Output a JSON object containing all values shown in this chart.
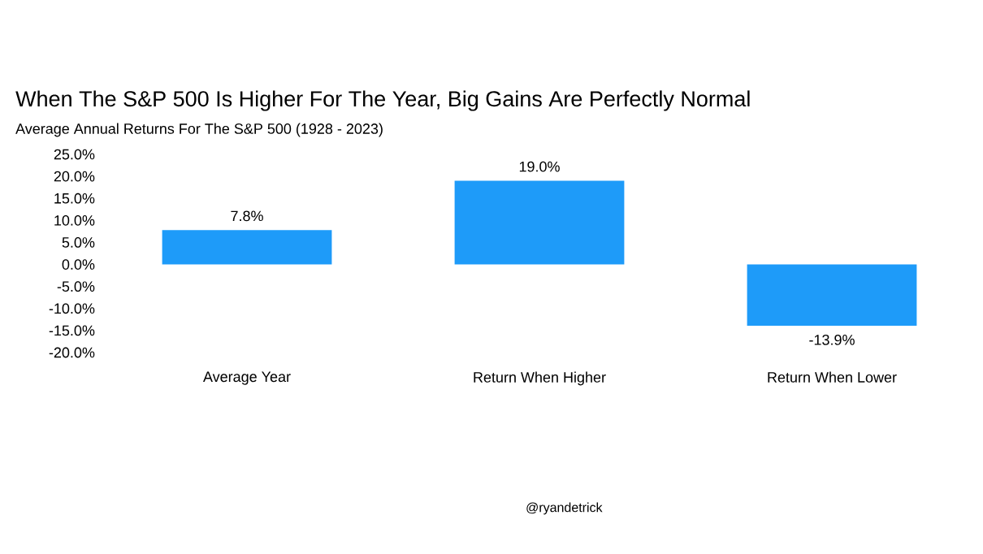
{
  "chart_data": {
    "type": "bar",
    "title": "When The S&P 500 Is Higher For The Year, Big Gains Are Perfectly Normal",
    "subtitle": "Average Annual Returns For The S&P 500 (1928 - 2023)",
    "categories": [
      "Average Year",
      "Return When Higher",
      "Return When Lower"
    ],
    "values": [
      7.8,
      19.0,
      -13.9
    ],
    "value_labels": [
      "7.8%",
      "19.0%",
      "-13.9%"
    ],
    "color": "#1e9bf9",
    "ylim": [
      -20,
      25
    ],
    "yticks": [
      {
        "value": -20,
        "label": "-20.0%"
      },
      {
        "value": -15,
        "label": "-15.0%"
      },
      {
        "value": -10,
        "label": "-10.0%"
      },
      {
        "value": -5,
        "label": "-5.0%"
      },
      {
        "value": 0,
        "label": "0.0%"
      },
      {
        "value": 5,
        "label": "5.0%"
      },
      {
        "value": 10,
        "label": "10.0%"
      },
      {
        "value": 15,
        "label": "15.0%"
      },
      {
        "value": 20,
        "label": "20.0%"
      },
      {
        "value": 25,
        "label": "25.0%"
      }
    ],
    "annotations": [
      "@ryandetrick"
    ]
  }
}
